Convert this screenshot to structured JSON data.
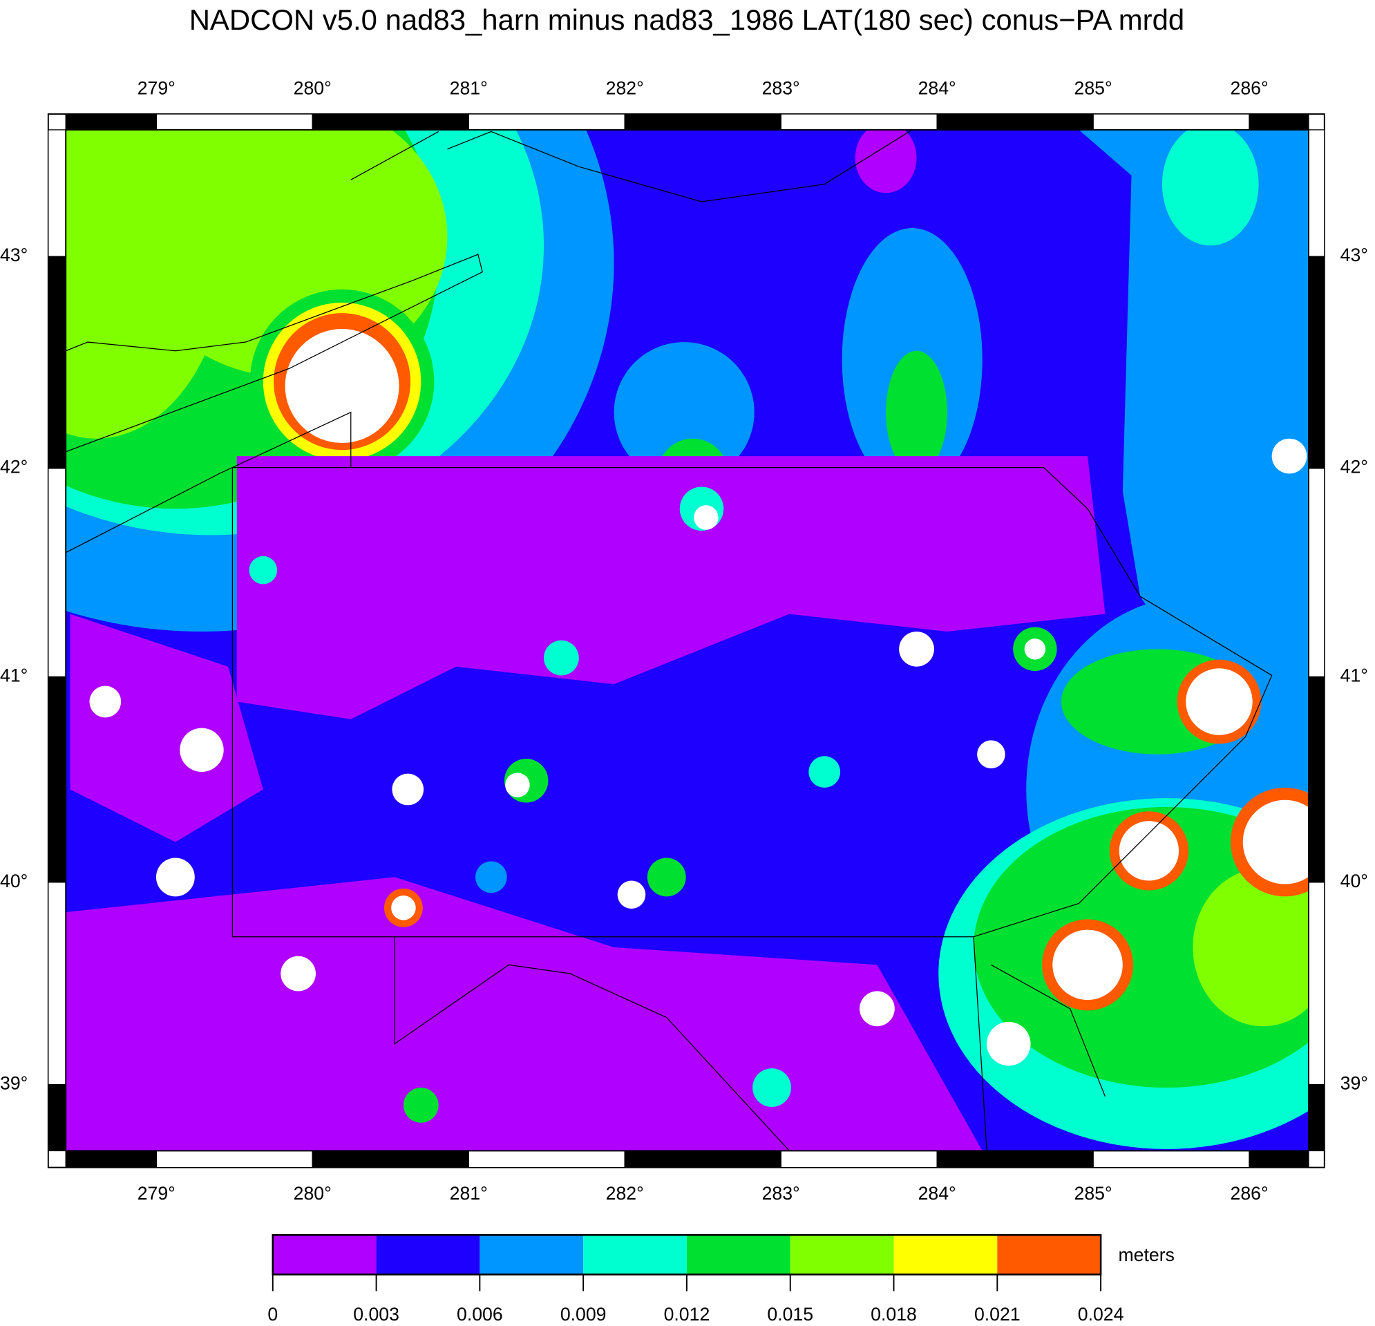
{
  "map": {
    "title": "NADCON v5.0 nad83_harn minus nad83_1986 LAT(180 sec) conus−PA mrdd",
    "projection": "mercator",
    "xlim": [
      278.42,
      286.38
    ],
    "ylim": [
      38.67,
      43.59
    ],
    "xticks": [
      {
        "value": 279,
        "label": "279°"
      },
      {
        "value": 280,
        "label": "280°"
      },
      {
        "value": 281,
        "label": "281°"
      },
      {
        "value": 282,
        "label": "282°"
      },
      {
        "value": 283,
        "label": "283°"
      },
      {
        "value": 284,
        "label": "284°"
      },
      {
        "value": 285,
        "label": "285°"
      },
      {
        "value": 286,
        "label": "286°"
      }
    ],
    "yticks": [
      {
        "value": 39,
        "label": "39°"
      },
      {
        "value": 40,
        "label": "40°"
      },
      {
        "value": 41,
        "label": "41°"
      },
      {
        "value": 42,
        "label": "42°"
      },
      {
        "value": 43,
        "label": "43°"
      }
    ],
    "colorbar": {
      "label": "meters",
      "ticks": [
        0,
        0.003,
        0.006,
        0.009,
        0.012,
        0.015,
        0.018,
        0.021,
        0.024
      ],
      "colors": [
        "#b000ff",
        "#1e00ff",
        "#0096ff",
        "#00ffd0",
        "#00e030",
        "#80ff00",
        "#ffff00",
        "#ff5a00"
      ]
    }
  }
}
